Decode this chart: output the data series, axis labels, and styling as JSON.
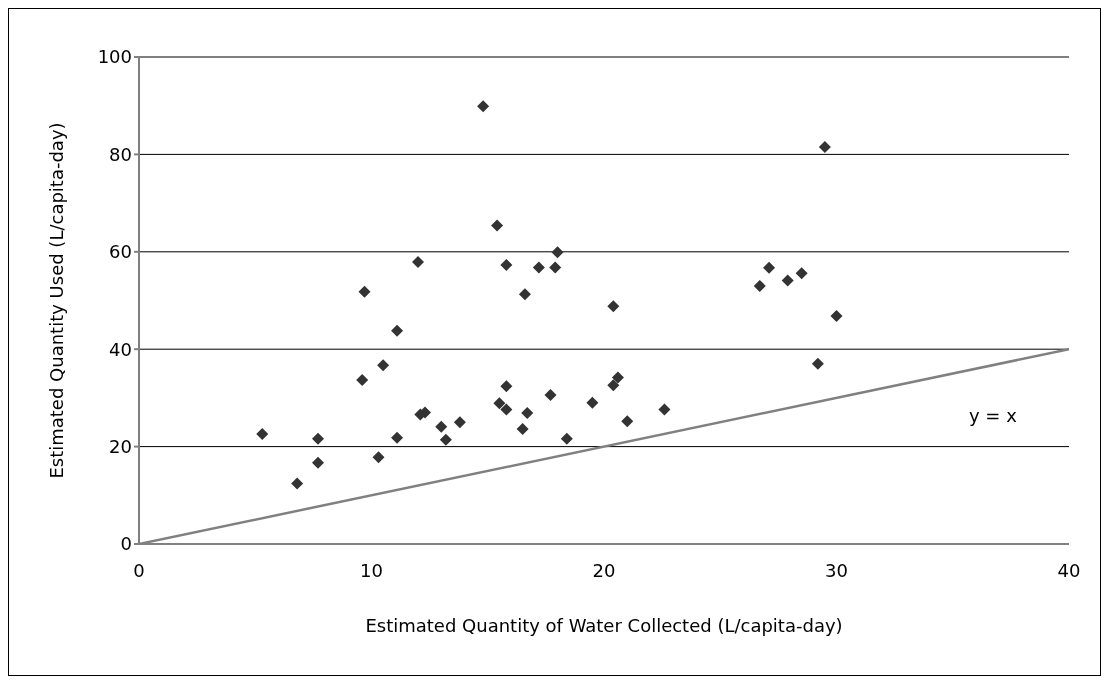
{
  "chart_data": {
    "type": "scatter",
    "xlabel": "Estimated Quantity of Water Collected (L/capita-day)",
    "ylabel": "Estimated Quantity Used (L/capita-day)",
    "xlim": [
      0,
      40
    ],
    "ylim": [
      0,
      100
    ],
    "xticks": [
      0,
      10,
      20,
      30,
      40
    ],
    "yticks": [
      0,
      20,
      40,
      60,
      80,
      100
    ],
    "grid": "y",
    "marker": "diamond",
    "legend": false,
    "series": [
      {
        "color": "#333333",
        "x": [
          5.3,
          6.8,
          7.7,
          7.7,
          9.6,
          9.7,
          10.3,
          10.5,
          11.1,
          11.1,
          12,
          12.1,
          12.3,
          13,
          13.2,
          13.8,
          14.8,
          15.4,
          15.5,
          15.8,
          15.8,
          15.8,
          16.5,
          16.6,
          16.7,
          17.2,
          17.7,
          17.9,
          18,
          18.4,
          19.5,
          20.4,
          20.4,
          20.6,
          21,
          22.6,
          26.7,
          27.1,
          27.9,
          28.5,
          29.2,
          29.5,
          30
        ],
        "values": [
          22.6,
          12.4,
          21.6,
          16.7,
          33.7,
          51.8,
          17.8,
          36.7,
          43.8,
          21.8,
          57.9,
          26.6,
          27,
          24.1,
          21.4,
          25,
          89.9,
          65.4,
          28.9,
          57.3,
          32.4,
          27.6,
          23.6,
          51.3,
          26.9,
          56.8,
          30.6,
          56.8,
          59.9,
          21.6,
          29,
          48.8,
          32.6,
          34.2,
          25.2,
          27.6,
          53,
          56.7,
          54.1,
          55.6,
          37,
          81.5,
          46.8
        ]
      },
      {
        "type": "line",
        "color": "#808080",
        "marker": "none",
        "x": [
          0,
          40
        ],
        "values": [
          0,
          40
        ]
      }
    ],
    "annotations": [
      "y = x"
    ]
  }
}
